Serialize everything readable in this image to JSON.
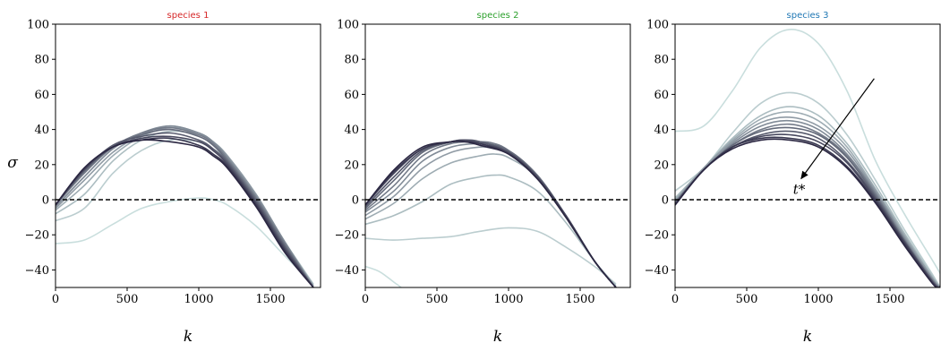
{
  "figure": {
    "ylabel": "σ"
  },
  "chart_data": [
    {
      "type": "line",
      "title": "species 1",
      "title_color": "#d62728",
      "xlabel": "k",
      "ylabel": "σ",
      "xlim": [
        0,
        1850
      ],
      "ylim": [
        -50,
        100
      ],
      "xticks": [
        "0",
        "500",
        "1000",
        "1500"
      ],
      "yticks": [
        "−40",
        "−20",
        "0",
        "20",
        "40",
        "60",
        "80",
        "100"
      ],
      "reference_line": {
        "y": 0,
        "style": "dashed",
        "color": "#000000"
      },
      "color_scale": [
        "#c9dedd",
        "#2b2742"
      ],
      "series": [
        {
          "x": [
            0,
            200,
            400,
            600,
            800,
            1000,
            1100,
            1200,
            1400,
            1600,
            1800
          ],
          "y": [
            -25,
            -23,
            -14,
            -5,
            -1,
            1,
            0,
            -3,
            -15,
            -32,
            -48
          ]
        },
        {
          "x": [
            0,
            200,
            400,
            600,
            800,
            1000,
            1100,
            1200,
            1400,
            1600,
            1800
          ],
          "y": [
            -12,
            -5,
            15,
            28,
            34,
            33,
            29,
            22,
            2,
            -24,
            -48
          ]
        },
        {
          "x": [
            0,
            200,
            400,
            600,
            800,
            1000,
            1100,
            1200,
            1400,
            1600,
            1800
          ],
          "y": [
            -8,
            3,
            22,
            34,
            39,
            37,
            33,
            25,
            3,
            -24,
            -49
          ]
        },
        {
          "x": [
            0,
            200,
            400,
            600,
            800,
            1000,
            1100,
            1200,
            1400,
            1600,
            1800
          ],
          "y": [
            -6,
            8,
            25,
            36,
            41,
            38,
            33,
            25,
            3,
            -24,
            -49
          ]
        },
        {
          "x": [
            0,
            200,
            400,
            600,
            800,
            1000,
            1100,
            1200,
            1400,
            1600,
            1800
          ],
          "y": [
            -5,
            11,
            27,
            37,
            42,
            38,
            33,
            25,
            3,
            -24,
            -49
          ]
        },
        {
          "x": [
            0,
            200,
            400,
            600,
            800,
            1000,
            1100,
            1200,
            1400,
            1600,
            1800
          ],
          "y": [
            -4,
            13,
            29,
            38,
            42,
            38,
            33,
            24,
            2,
            -24,
            -50
          ]
        },
        {
          "x": [
            0,
            200,
            400,
            600,
            800,
            1000,
            1100,
            1200,
            1400,
            1600,
            1800
          ],
          "y": [
            -3,
            15,
            30,
            38,
            41,
            37,
            32,
            23,
            1,
            -25,
            -50
          ]
        },
        {
          "x": [
            0,
            200,
            400,
            600,
            800,
            1000,
            1100,
            1200,
            1400,
            1600,
            1800
          ],
          "y": [
            -3,
            16,
            30,
            37,
            40,
            36,
            31,
            22,
            0,
            -26,
            -50
          ]
        },
        {
          "x": [
            0,
            200,
            400,
            600,
            800,
            1000,
            1100,
            1200,
            1400,
            1600,
            1800
          ],
          "y": [
            -3,
            17,
            31,
            36,
            38,
            34,
            29,
            21,
            -1,
            -27,
            -50
          ]
        },
        {
          "x": [
            0,
            200,
            400,
            600,
            800,
            1000,
            1100,
            1200,
            1400,
            1600,
            1800
          ],
          "y": [
            -3,
            17,
            30,
            35,
            36,
            33,
            28,
            20,
            -2,
            -28,
            -50
          ]
        },
        {
          "x": [
            0,
            200,
            400,
            600,
            800,
            1000,
            1100,
            1200,
            1400,
            1600,
            1800
          ],
          "y": [
            -3,
            18,
            30,
            34,
            35,
            31,
            26,
            19,
            -3,
            -29,
            -50
          ]
        },
        {
          "x": [
            0,
            200,
            400,
            600,
            800,
            1000,
            1100,
            1200,
            1400,
            1600,
            1800
          ],
          "y": [
            -3,
            18,
            30,
            34,
            33,
            30,
            25,
            18,
            -4,
            -30,
            -50
          ]
        }
      ]
    },
    {
      "type": "line",
      "title": "species 2",
      "title_color": "#2ca02c",
      "xlabel": "k",
      "ylabel": "",
      "xlim": [
        0,
        1850
      ],
      "ylim": [
        -50,
        100
      ],
      "xticks": [
        "0",
        "500",
        "1000",
        "1500"
      ],
      "yticks": [
        "−40",
        "−20",
        "0",
        "20",
        "40",
        "60",
        "80",
        "100"
      ],
      "reference_line": {
        "y": 0,
        "style": "dashed",
        "color": "#000000"
      },
      "color_scale": [
        "#c9dedd",
        "#2b2742"
      ],
      "series": [
        {
          "x": [
            0,
            100,
            200,
            250,
            300
          ],
          "y": [
            -38,
            -41,
            -47,
            -50,
            -54
          ]
        },
        {
          "x": [
            0,
            200,
            400,
            600,
            800,
            1000,
            1200,
            1400,
            1600,
            1750
          ],
          "y": [
            -22,
            -23,
            -22,
            -21,
            -18,
            -16,
            -18,
            -27,
            -38,
            -48
          ]
        },
        {
          "x": [
            0,
            200,
            400,
            600,
            800,
            900,
            1000,
            1200,
            1400,
            1600,
            1750
          ],
          "y": [
            -14,
            -9,
            -1,
            9,
            13,
            14,
            13,
            5,
            -13,
            -35,
            -49
          ]
        },
        {
          "x": [
            0,
            200,
            400,
            600,
            800,
            900,
            1000,
            1200,
            1400,
            1600,
            1750
          ],
          "y": [
            -11,
            -2,
            12,
            21,
            25,
            26,
            24,
            13,
            -10,
            -35,
            -50
          ]
        },
        {
          "x": [
            0,
            200,
            400,
            600,
            800,
            900,
            1000,
            1200,
            1400,
            1600,
            1750
          ],
          "y": [
            -9,
            2,
            18,
            27,
            30,
            29,
            27,
            14,
            -9,
            -35,
            -50
          ]
        },
        {
          "x": [
            0,
            200,
            400,
            600,
            800,
            900,
            1000,
            1200,
            1400,
            1600,
            1750
          ],
          "y": [
            -7,
            5,
            22,
            30,
            32,
            31,
            28,
            14,
            -9,
            -35,
            -50
          ]
        },
        {
          "x": [
            0,
            200,
            400,
            600,
            800,
            900,
            1000,
            1200,
            1400,
            1600,
            1750
          ],
          "y": [
            -6,
            8,
            25,
            32,
            33,
            32,
            28,
            14,
            -9,
            -35,
            -50
          ]
        },
        {
          "x": [
            0,
            200,
            400,
            600,
            700,
            800,
            1000,
            1200,
            1400,
            1600,
            1750
          ],
          "y": [
            -5,
            11,
            27,
            33,
            34,
            33,
            28,
            14,
            -9,
            -35,
            -50
          ]
        },
        {
          "x": [
            0,
            200,
            400,
            600,
            700,
            800,
            1000,
            1200,
            1400,
            1600,
            1750
          ],
          "y": [
            -4,
            13,
            28,
            33,
            34,
            33,
            27,
            13,
            -9,
            -35,
            -50
          ]
        },
        {
          "x": [
            0,
            200,
            400,
            600,
            700,
            800,
            1000,
            1200,
            1400,
            1600,
            1750
          ],
          "y": [
            -3,
            15,
            29,
            33,
            34,
            32,
            27,
            13,
            -9,
            -35,
            -50
          ]
        },
        {
          "x": [
            0,
            200,
            400,
            600,
            700,
            800,
            1000,
            1200,
            1400,
            1600,
            1750
          ],
          "y": [
            -3,
            16,
            29,
            33,
            33,
            32,
            26,
            12,
            -10,
            -35,
            -50
          ]
        },
        {
          "x": [
            0,
            200,
            400,
            600,
            700,
            800,
            1000,
            1200,
            1400,
            1600,
            1750
          ],
          "y": [
            -3,
            17,
            30,
            33,
            33,
            31,
            26,
            12,
            -10,
            -35,
            -50
          ]
        }
      ]
    },
    {
      "type": "line",
      "title": "species 3",
      "title_color": "#1f77b4",
      "xlabel": "k",
      "ylabel": "",
      "xlim": [
        0,
        1850
      ],
      "ylim": [
        -50,
        100
      ],
      "xticks": [
        "0",
        "500",
        "1000",
        "1500"
      ],
      "yticks": [
        "−40",
        "−20",
        "0",
        "20",
        "40",
        "60",
        "80",
        "100"
      ],
      "reference_line": {
        "y": 0,
        "style": "dashed",
        "color": "#000000"
      },
      "color_scale": [
        "#c9dedd",
        "#2b2742"
      ],
      "annotation": {
        "text": "t*",
        "arrow_from": [
          1390,
          69
        ],
        "arrow_to": [
          880,
          12
        ]
      },
      "series": [
        {
          "x": [
            0,
            200,
            400,
            600,
            800,
            1000,
            1200,
            1400,
            1600,
            1800,
            1850
          ],
          "y": [
            39,
            42,
            62,
            87,
            97,
            89,
            62,
            22,
            -8,
            -35,
            -42
          ]
        },
        {
          "x": [
            0,
            200,
            400,
            600,
            800,
            1000,
            1200,
            1400,
            1600,
            1800,
            1850
          ],
          "y": [
            5,
            18,
            38,
            55,
            61,
            55,
            37,
            11,
            -17,
            -43,
            -50
          ]
        },
        {
          "x": [
            0,
            200,
            400,
            600,
            800,
            1000,
            1200,
            1400,
            1600,
            1800,
            1850
          ],
          "y": [
            1,
            18,
            35,
            48,
            53,
            48,
            32,
            8,
            -19,
            -44,
            -50
          ]
        },
        {
          "x": [
            0,
            200,
            400,
            600,
            800,
            1000,
            1200,
            1400,
            1600,
            1800,
            1850
          ],
          "y": [
            0,
            18,
            34,
            46,
            50,
            45,
            30,
            6,
            -20,
            -45,
            -50
          ]
        },
        {
          "x": [
            0,
            200,
            400,
            600,
            800,
            1000,
            1200,
            1400,
            1600,
            1800,
            1850
          ],
          "y": [
            -1,
            18,
            33,
            44,
            47,
            42,
            28,
            5,
            -21,
            -45,
            -50
          ]
        },
        {
          "x": [
            0,
            200,
            400,
            600,
            800,
            1000,
            1200,
            1400,
            1600,
            1800,
            1850
          ],
          "y": [
            -1,
            17,
            32,
            42,
            45,
            40,
            26,
            4,
            -22,
            -46,
            -50
          ]
        },
        {
          "x": [
            0,
            200,
            400,
            600,
            800,
            1000,
            1200,
            1400,
            1600,
            1800,
            1850
          ],
          "y": [
            -2,
            17,
            31,
            40,
            43,
            38,
            25,
            3,
            -23,
            -46,
            -50
          ]
        },
        {
          "x": [
            0,
            200,
            400,
            600,
            800,
            1000,
            1200,
            1400,
            1600,
            1800,
            1850
          ],
          "y": [
            -2,
            17,
            31,
            39,
            41,
            37,
            24,
            2,
            -23,
            -47,
            -50
          ]
        },
        {
          "x": [
            0,
            200,
            400,
            600,
            800,
            1000,
            1200,
            1400,
            1600,
            1800,
            1850
          ],
          "y": [
            -2,
            17,
            30,
            37,
            39,
            35,
            22,
            1,
            -24,
            -47,
            -50
          ]
        },
        {
          "x": [
            0,
            200,
            400,
            600,
            800,
            1000,
            1200,
            1400,
            1600,
            1800,
            1850
          ],
          "y": [
            -3,
            17,
            30,
            36,
            37,
            33,
            21,
            0,
            -24,
            -47,
            -50
          ]
        },
        {
          "x": [
            0,
            200,
            400,
            600,
            800,
            1000,
            1200,
            1400,
            1600,
            1800,
            1850
          ],
          "y": [
            -3,
            17,
            30,
            35,
            35,
            31,
            19,
            -1,
            -25,
            -48,
            -50
          ]
        },
        {
          "x": [
            0,
            200,
            400,
            600,
            800,
            1000,
            1200,
            1400,
            1600,
            1800,
            1850
          ],
          "y": [
            -3,
            17,
            29,
            34,
            34,
            30,
            18,
            -2,
            -26,
            -48,
            -50
          ]
        }
      ]
    }
  ]
}
